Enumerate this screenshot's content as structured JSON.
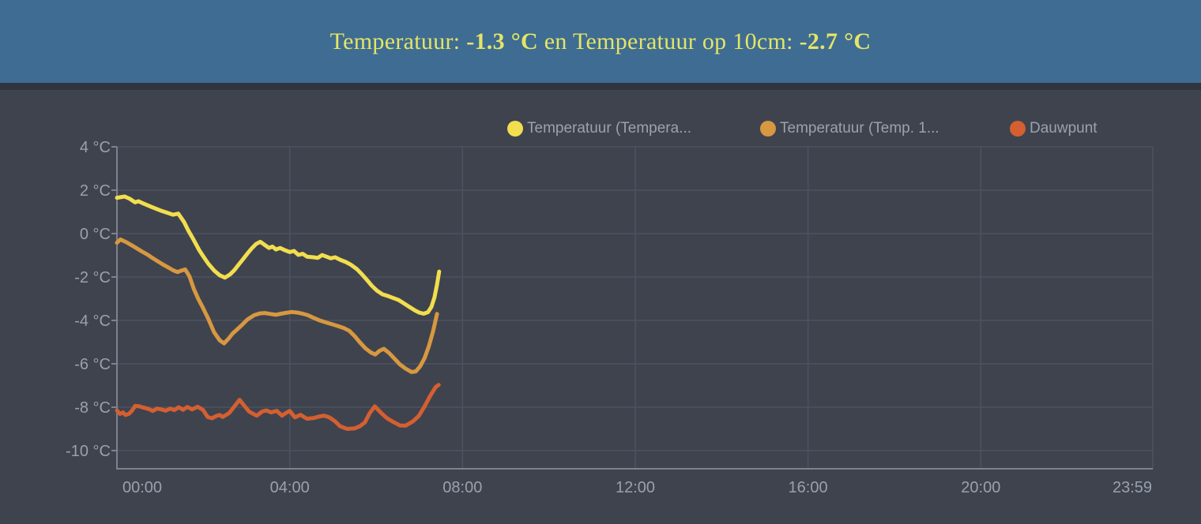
{
  "header": {
    "title_parts": [
      {
        "text": "Temperatuur: ",
        "bold": false
      },
      {
        "text": "-1.3 °C",
        "bold": true
      },
      {
        "text": " en Temperatuur op 10cm: ",
        "bold": false
      },
      {
        "text": "-2.7 °C",
        "bold": true
      }
    ]
  },
  "colors": {
    "header_bg": "#3e6c92",
    "header_text": "#e4e566",
    "page_bg": "#3f434e",
    "divider": "#30343e",
    "grid": "#4b5261",
    "axis": "#7c8290",
    "tick_text": "#99a1ad",
    "legend_text": "#9aa2ae",
    "series_temperature": "#f2de4e",
    "series_temp_10cm": "#d79840",
    "series_dauwpunt": "#d45f31"
  },
  "chart_data": {
    "type": "line",
    "title": "",
    "grid": true,
    "legend_position": "top",
    "x_axis": {
      "unit": "hh:mm",
      "range_hours": [
        0,
        23.983
      ],
      "ticks": [
        {
          "t": 0,
          "label": "00:00"
        },
        {
          "t": 4,
          "label": "04:00"
        },
        {
          "t": 8,
          "label": "08:00"
        },
        {
          "t": 12,
          "label": "12:00"
        },
        {
          "t": 16,
          "label": "16:00"
        },
        {
          "t": 20,
          "label": "20:00"
        },
        {
          "t": 23.983,
          "label": "23:59"
        }
      ]
    },
    "y_axis": {
      "unit": "°C",
      "max": 4,
      "min": -10,
      "ticks": [
        {
          "v": 4,
          "label": "4 °C"
        },
        {
          "v": 2,
          "label": "2 °C"
        },
        {
          "v": 0,
          "label": "0 °C"
        },
        {
          "v": -2,
          "label": "-2 °C"
        },
        {
          "v": -4,
          "label": "-4 °C"
        },
        {
          "v": -6,
          "label": "-6 °C"
        },
        {
          "v": -8,
          "label": "-8 °C"
        },
        {
          "v": -10,
          "label": "-10 °C"
        }
      ]
    },
    "legend": [
      {
        "label": "Temperatuur (Tempera...",
        "color": "#f2de4e"
      },
      {
        "label": "Temperatuur (Temp. 1...",
        "color": "#d79840"
      },
      {
        "label": "Dauwpunt",
        "color": "#d45f31"
      }
    ],
    "series": [
      {
        "name": "Temperatuur",
        "color": "#f2de4e",
        "points": [
          [
            0,
            1.65
          ],
          [
            0.18,
            1.71
          ],
          [
            0.3,
            1.6
          ],
          [
            0.42,
            1.44
          ],
          [
            0.5,
            1.49
          ],
          [
            0.62,
            1.38
          ],
          [
            0.8,
            1.23
          ],
          [
            1.0,
            1.07
          ],
          [
            1.18,
            0.95
          ],
          [
            1.3,
            0.87
          ],
          [
            1.42,
            0.92
          ],
          [
            1.55,
            0.55
          ],
          [
            1.65,
            0.15
          ],
          [
            1.78,
            -0.3
          ],
          [
            1.9,
            -0.75
          ],
          [
            2.0,
            -1.05
          ],
          [
            2.12,
            -1.4
          ],
          [
            2.25,
            -1.7
          ],
          [
            2.38,
            -1.92
          ],
          [
            2.5,
            -2.03
          ],
          [
            2.62,
            -1.88
          ],
          [
            2.72,
            -1.68
          ],
          [
            2.82,
            -1.42
          ],
          [
            2.92,
            -1.18
          ],
          [
            3.02,
            -0.92
          ],
          [
            3.12,
            -0.68
          ],
          [
            3.22,
            -0.48
          ],
          [
            3.32,
            -0.38
          ],
          [
            3.42,
            -0.52
          ],
          [
            3.52,
            -0.66
          ],
          [
            3.6,
            -0.6
          ],
          [
            3.68,
            -0.73
          ],
          [
            3.78,
            -0.66
          ],
          [
            3.88,
            -0.76
          ],
          [
            4.0,
            -0.85
          ],
          [
            4.1,
            -0.8
          ],
          [
            4.2,
            -0.98
          ],
          [
            4.3,
            -0.93
          ],
          [
            4.4,
            -1.06
          ],
          [
            4.55,
            -1.09
          ],
          [
            4.65,
            -1.12
          ],
          [
            4.75,
            -0.99
          ],
          [
            4.85,
            -1.06
          ],
          [
            4.95,
            -1.14
          ],
          [
            5.05,
            -1.09
          ],
          [
            5.18,
            -1.22
          ],
          [
            5.3,
            -1.31
          ],
          [
            5.42,
            -1.44
          ],
          [
            5.55,
            -1.63
          ],
          [
            5.67,
            -1.87
          ],
          [
            5.78,
            -2.12
          ],
          [
            5.9,
            -2.4
          ],
          [
            6.02,
            -2.63
          ],
          [
            6.15,
            -2.8
          ],
          [
            6.28,
            -2.88
          ],
          [
            6.4,
            -2.97
          ],
          [
            6.52,
            -3.06
          ],
          [
            6.65,
            -3.22
          ],
          [
            6.77,
            -3.38
          ],
          [
            6.9,
            -3.54
          ],
          [
            7.0,
            -3.64
          ],
          [
            7.1,
            -3.69
          ],
          [
            7.2,
            -3.62
          ],
          [
            7.28,
            -3.38
          ],
          [
            7.35,
            -2.95
          ],
          [
            7.41,
            -2.35
          ],
          [
            7.46,
            -1.75
          ]
        ]
      },
      {
        "name": "Temperatuur op 10cm",
        "color": "#d79840",
        "points": [
          [
            0,
            -0.42
          ],
          [
            0.08,
            -0.27
          ],
          [
            0.22,
            -0.4
          ],
          [
            0.35,
            -0.55
          ],
          [
            0.46,
            -0.68
          ],
          [
            0.59,
            -0.84
          ],
          [
            0.71,
            -0.97
          ],
          [
            0.82,
            -1.12
          ],
          [
            0.95,
            -1.28
          ],
          [
            1.08,
            -1.44
          ],
          [
            1.19,
            -1.56
          ],
          [
            1.3,
            -1.69
          ],
          [
            1.4,
            -1.77
          ],
          [
            1.5,
            -1.7
          ],
          [
            1.58,
            -1.65
          ],
          [
            1.68,
            -1.97
          ],
          [
            1.78,
            -2.55
          ],
          [
            1.88,
            -3.0
          ],
          [
            2.0,
            -3.45
          ],
          [
            2.12,
            -3.95
          ],
          [
            2.25,
            -4.55
          ],
          [
            2.38,
            -4.92
          ],
          [
            2.48,
            -5.06
          ],
          [
            2.58,
            -4.85
          ],
          [
            2.68,
            -4.6
          ],
          [
            2.78,
            -4.42
          ],
          [
            2.9,
            -4.2
          ],
          [
            3.02,
            -3.96
          ],
          [
            3.18,
            -3.76
          ],
          [
            3.3,
            -3.68
          ],
          [
            3.42,
            -3.66
          ],
          [
            3.55,
            -3.7
          ],
          [
            3.68,
            -3.74
          ],
          [
            3.8,
            -3.69
          ],
          [
            3.92,
            -3.65
          ],
          [
            4.05,
            -3.61
          ],
          [
            4.18,
            -3.64
          ],
          [
            4.3,
            -3.69
          ],
          [
            4.42,
            -3.76
          ],
          [
            4.55,
            -3.88
          ],
          [
            4.68,
            -3.99
          ],
          [
            4.82,
            -4.08
          ],
          [
            4.95,
            -4.16
          ],
          [
            5.1,
            -4.25
          ],
          [
            5.25,
            -4.35
          ],
          [
            5.38,
            -4.48
          ],
          [
            5.5,
            -4.72
          ],
          [
            5.62,
            -5.0
          ],
          [
            5.75,
            -5.28
          ],
          [
            5.88,
            -5.48
          ],
          [
            5.98,
            -5.57
          ],
          [
            6.08,
            -5.4
          ],
          [
            6.18,
            -5.31
          ],
          [
            6.3,
            -5.5
          ],
          [
            6.42,
            -5.75
          ],
          [
            6.55,
            -6.02
          ],
          [
            6.68,
            -6.22
          ],
          [
            6.82,
            -6.38
          ],
          [
            6.92,
            -6.35
          ],
          [
            7.02,
            -6.12
          ],
          [
            7.12,
            -5.75
          ],
          [
            7.22,
            -5.2
          ],
          [
            7.32,
            -4.5
          ],
          [
            7.41,
            -3.7
          ]
        ]
      },
      {
        "name": "Dauwpunt",
        "color": "#d45f31",
        "points": [
          [
            0,
            -8.15
          ],
          [
            0.07,
            -8.31
          ],
          [
            0.14,
            -8.24
          ],
          [
            0.2,
            -8.36
          ],
          [
            0.28,
            -8.3
          ],
          [
            0.35,
            -8.16
          ],
          [
            0.42,
            -7.94
          ],
          [
            0.52,
            -7.96
          ],
          [
            0.62,
            -8.02
          ],
          [
            0.73,
            -8.08
          ],
          [
            0.83,
            -8.17
          ],
          [
            0.93,
            -8.06
          ],
          [
            1.03,
            -8.1
          ],
          [
            1.13,
            -8.16
          ],
          [
            1.23,
            -8.06
          ],
          [
            1.33,
            -8.13
          ],
          [
            1.43,
            -8.0
          ],
          [
            1.53,
            -8.12
          ],
          [
            1.63,
            -7.99
          ],
          [
            1.74,
            -8.1
          ],
          [
            1.87,
            -7.98
          ],
          [
            1.99,
            -8.12
          ],
          [
            2.1,
            -8.45
          ],
          [
            2.2,
            -8.51
          ],
          [
            2.29,
            -8.41
          ],
          [
            2.38,
            -8.36
          ],
          [
            2.45,
            -8.45
          ],
          [
            2.6,
            -8.27
          ],
          [
            2.72,
            -7.96
          ],
          [
            2.84,
            -7.66
          ],
          [
            2.96,
            -7.96
          ],
          [
            3.06,
            -8.2
          ],
          [
            3.15,
            -8.3
          ],
          [
            3.24,
            -8.39
          ],
          [
            3.36,
            -8.2
          ],
          [
            3.46,
            -8.15
          ],
          [
            3.57,
            -8.24
          ],
          [
            3.7,
            -8.17
          ],
          [
            3.82,
            -8.39
          ],
          [
            3.91,
            -8.27
          ],
          [
            4.0,
            -8.17
          ],
          [
            4.12,
            -8.47
          ],
          [
            4.25,
            -8.35
          ],
          [
            4.4,
            -8.53
          ],
          [
            4.55,
            -8.5
          ],
          [
            4.7,
            -8.42
          ],
          [
            4.8,
            -8.39
          ],
          [
            4.92,
            -8.47
          ],
          [
            5.05,
            -8.65
          ],
          [
            5.16,
            -8.87
          ],
          [
            5.33,
            -9.0
          ],
          [
            5.5,
            -8.98
          ],
          [
            5.62,
            -8.88
          ],
          [
            5.74,
            -8.7
          ],
          [
            5.85,
            -8.28
          ],
          [
            5.97,
            -7.96
          ],
          [
            6.12,
            -8.27
          ],
          [
            6.25,
            -8.5
          ],
          [
            6.4,
            -8.68
          ],
          [
            6.55,
            -8.84
          ],
          [
            6.68,
            -8.85
          ],
          [
            6.85,
            -8.66
          ],
          [
            6.99,
            -8.4
          ],
          [
            7.12,
            -7.97
          ],
          [
            7.26,
            -7.45
          ],
          [
            7.38,
            -7.07
          ],
          [
            7.45,
            -6.97
          ]
        ]
      }
    ]
  }
}
